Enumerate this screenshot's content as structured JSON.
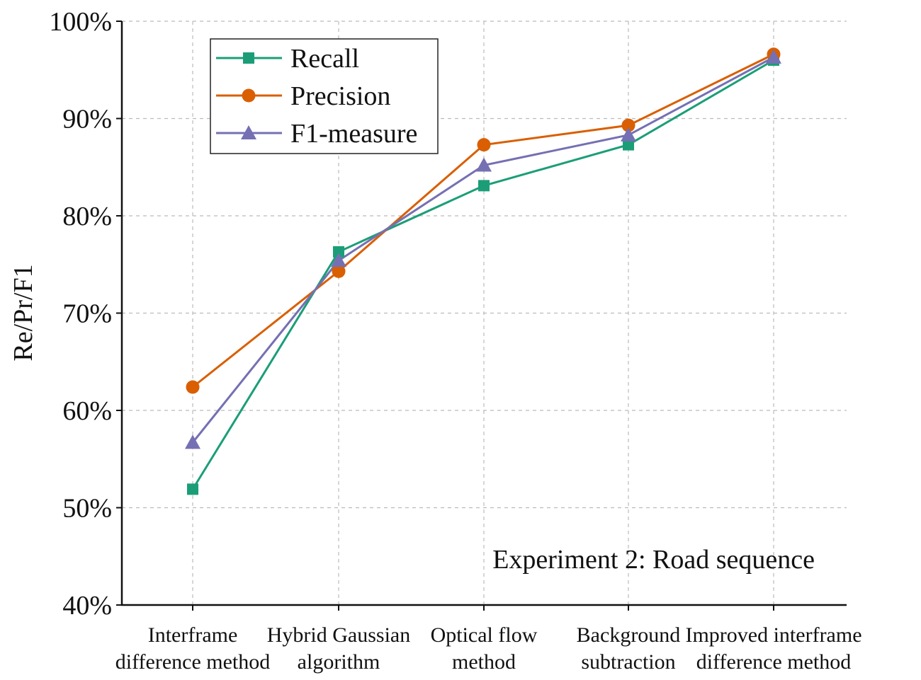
{
  "chart_data": {
    "type": "line",
    "title": "",
    "annotation": "Experiment 2: Road sequence",
    "ylabel": "Re/Pr/F1",
    "xlabel": "",
    "categories": [
      [
        "Interframe",
        "difference method"
      ],
      [
        "Hybrid Gaussian",
        "algorithm"
      ],
      [
        "Optical flow",
        "method"
      ],
      [
        "Background",
        "subtraction"
      ],
      [
        "Improved interframe",
        "difference method"
      ]
    ],
    "ylim": [
      40,
      100
    ],
    "yticks": [
      40,
      50,
      60,
      70,
      80,
      90,
      100
    ],
    "ytick_labels": [
      "40%",
      "50%",
      "60%",
      "70%",
      "80%",
      "90%",
      "100%"
    ],
    "grid": true,
    "legend_position": "top-left",
    "series": [
      {
        "name": "Recall",
        "color": "#1b9e77",
        "marker": "square",
        "values": [
          51.9,
          76.3,
          83.1,
          87.3,
          96.0
        ]
      },
      {
        "name": "Precision",
        "color": "#d95f02",
        "marker": "circle",
        "values": [
          62.4,
          74.3,
          87.3,
          89.3,
          96.6
        ]
      },
      {
        "name": "F1-measure",
        "color": "#7570b3",
        "marker": "triangle",
        "values": [
          56.7,
          75.4,
          85.2,
          88.3,
          96.3
        ]
      }
    ]
  }
}
